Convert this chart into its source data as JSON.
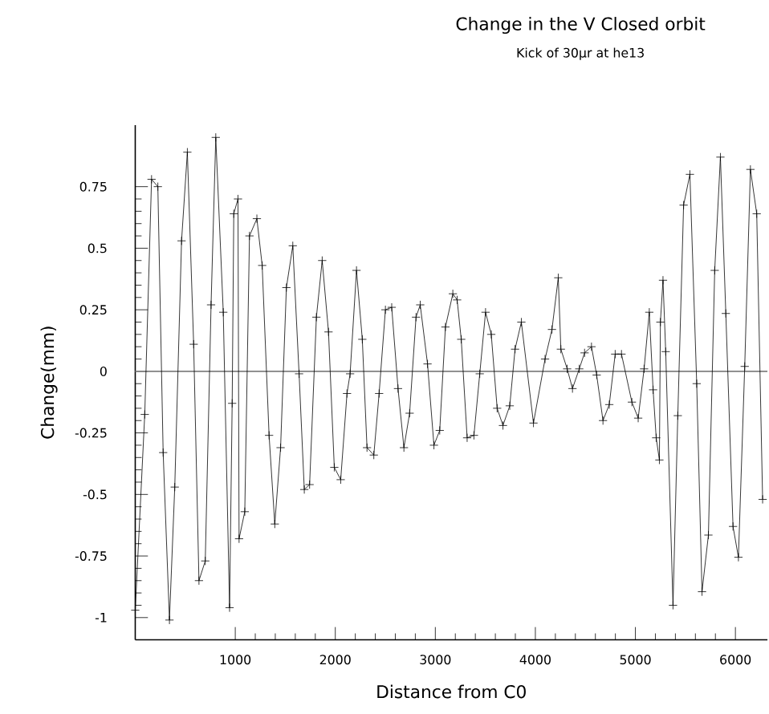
{
  "chart_data": {
    "type": "line",
    "title": "Change in the V Closed orbit",
    "subtitle": "Kick of 30μr at he13",
    "xlabel": "Distance from C0",
    "ylabel": "Change(mm)",
    "xlim": [
      0,
      6320
    ],
    "ylim": [
      -1.09,
      1.0
    ],
    "xticks": [
      1000,
      2000,
      3000,
      4000,
      5000,
      6000
    ],
    "yticks": [
      -1,
      -0.75,
      -0.5,
      -0.25,
      0,
      0.25,
      0.5,
      0.75
    ],
    "grid": false,
    "marker": "cross",
    "line_style": "solid",
    "ref_lines": [
      {
        "axis": "y",
        "value": 0,
        "color": "#808080"
      }
    ],
    "series": [
      {
        "color": "#000000",
        "x": [
          0,
          95,
          163,
          226,
          279,
          342,
          395,
          463,
          521,
          584,
          637,
          700,
          758,
          805,
          880,
          943,
          969,
          985,
          1027,
          1038,
          1095,
          1142,
          1216,
          1269,
          1338,
          1395,
          1453,
          1511,
          1575,
          1638,
          1690,
          1743,
          1811,
          1869,
          1932,
          1990,
          2054,
          2117,
          2148,
          2212,
          2270,
          2317,
          2385,
          2438,
          2501,
          2564,
          2627,
          2686,
          2743,
          2807,
          2849,
          2922,
          2986,
          3044,
          3101,
          3175,
          3218,
          3259,
          3318,
          3386,
          3444,
          3502,
          3559,
          3618,
          3676,
          3744,
          3797,
          3860,
          3981,
          4097,
          4166,
          4229,
          4255,
          4318,
          4371,
          4439,
          4492,
          4561,
          4613,
          4676,
          4739,
          4798,
          4861,
          4965,
          5028,
          5087,
          5139,
          5177,
          5208,
          5240,
          5250,
          5276,
          5303,
          5376,
          5424,
          5482,
          5545,
          5613,
          5666,
          5730,
          5793,
          5850,
          5904,
          5976,
          6030,
          6093,
          6150,
          6213,
          6272
        ],
        "values": [
          -0.97,
          -0.175,
          0.78,
          0.75,
          -0.33,
          -1.01,
          -0.47,
          0.53,
          0.89,
          0.11,
          -0.85,
          -0.77,
          0.27,
          0.95,
          0.24,
          -0.96,
          -0.13,
          0.64,
          0.7,
          -0.68,
          -0.57,
          0.55,
          0.62,
          0.43,
          -0.26,
          -0.62,
          -0.31,
          0.34,
          0.51,
          -0.01,
          -0.48,
          -0.46,
          0.22,
          0.45,
          0.16,
          -0.39,
          -0.44,
          -0.09,
          -0.01,
          0.41,
          0.13,
          -0.31,
          -0.34,
          -0.09,
          0.25,
          0.26,
          -0.07,
          -0.31,
          -0.17,
          0.22,
          0.27,
          0.03,
          -0.3,
          -0.24,
          0.18,
          0.315,
          0.29,
          0.13,
          -0.27,
          -0.26,
          -0.01,
          0.24,
          0.15,
          -0.15,
          -0.22,
          -0.14,
          0.09,
          0.2,
          -0.21,
          0.05,
          0.17,
          0.38,
          0.09,
          0.01,
          -0.07,
          0.01,
          0.075,
          0.1,
          -0.015,
          -0.2,
          -0.135,
          0.07,
          0.07,
          -0.125,
          -0.19,
          0.01,
          0.24,
          -0.075,
          -0.27,
          -0.36,
          0.2,
          0.37,
          0.08,
          -0.95,
          -0.18,
          0.675,
          0.8,
          -0.05,
          -0.895,
          -0.665,
          0.41,
          0.87,
          0.235,
          -0.63,
          -0.755,
          0.02,
          0.82,
          0.64,
          -0.52
        ]
      }
    ]
  }
}
